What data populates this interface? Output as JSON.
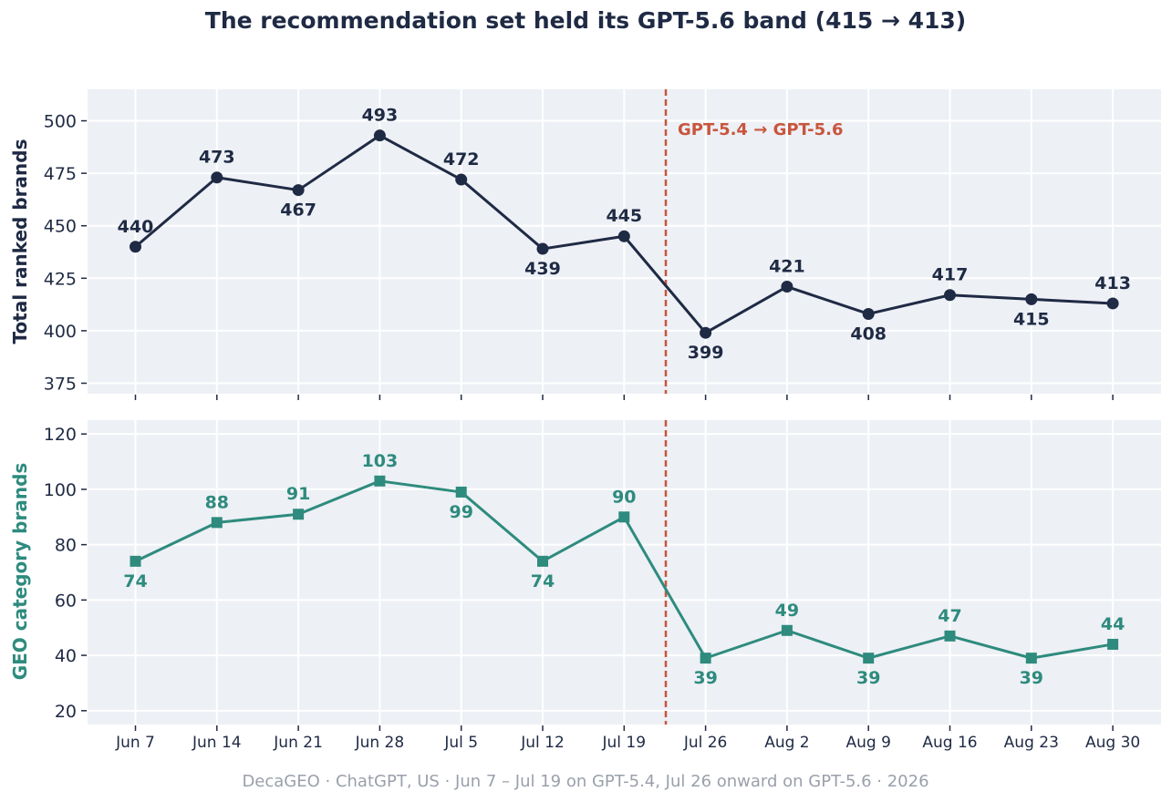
{
  "title": "The recommendation set held its GPT-5.6 band (415 → 413)",
  "footer": "DecaGEO · ChatGPT, US · Jun 7 – Jul 19 on GPT-5.4, Jul 26 onward on GPT-5.6 · 2026",
  "colors": {
    "panel_bg": "#edf0f5",
    "grid": "#ffffff",
    "top_series": "#1f2a44",
    "bottom_series": "#2e8b7e",
    "switch_line": "#c8553d",
    "footer": "#9aa0ab"
  },
  "chart_data": [
    {
      "type": "line",
      "marker": "circle",
      "x": [
        "Jun 7",
        "Jun 14",
        "Jun 21",
        "Jun 28",
        "Jul 5",
        "Jul 12",
        "Jul 19",
        "Jul 26",
        "Aug 2",
        "Aug 9",
        "Aug 16",
        "Aug 23",
        "Aug 30"
      ],
      "values": [
        440,
        473,
        467,
        493,
        472,
        439,
        445,
        399,
        421,
        408,
        417,
        415,
        413
      ],
      "label_pos": [
        "above",
        "above",
        "below",
        "above",
        "above",
        "below",
        "above",
        "below",
        "above",
        "below",
        "above",
        "below",
        "above"
      ],
      "ylabel": "Total ranked brands",
      "ylim": [
        370,
        515
      ],
      "yticks": [
        375,
        400,
        425,
        450,
        475,
        500
      ],
      "grid": true,
      "annotation": {
        "text": "GPT-5.4 → GPT-5.6",
        "x_between": [
          "Jul 19",
          "Jul 26"
        ]
      },
      "x_tick_labels_shown": false
    },
    {
      "type": "line",
      "marker": "square",
      "x": [
        "Jun 7",
        "Jun 14",
        "Jun 21",
        "Jun 28",
        "Jul 5",
        "Jul 12",
        "Jul 19",
        "Jul 26",
        "Aug 2",
        "Aug 9",
        "Aug 16",
        "Aug 23",
        "Aug 30"
      ],
      "values": [
        74,
        88,
        91,
        103,
        99,
        74,
        90,
        39,
        49,
        39,
        47,
        39,
        44
      ],
      "label_pos": [
        "below",
        "above",
        "above",
        "above",
        "below",
        "below",
        "above",
        "below",
        "above",
        "below",
        "above",
        "below",
        "above"
      ],
      "ylabel": "GEO category brands",
      "ylim": [
        15,
        125
      ],
      "yticks": [
        20,
        40,
        60,
        80,
        100,
        120
      ],
      "grid": true,
      "x_tick_labels_shown": true
    }
  ]
}
